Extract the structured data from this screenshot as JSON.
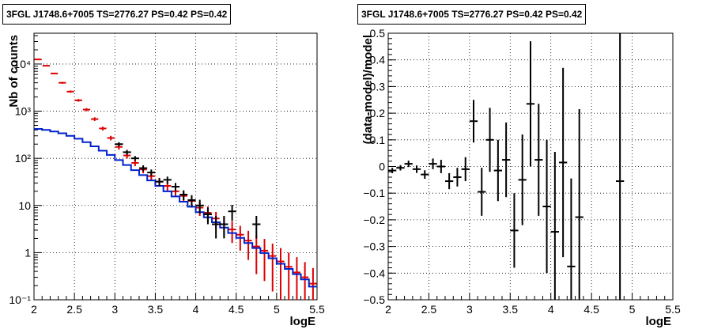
{
  "colors": {
    "data": "#000000",
    "model": "#0022cc",
    "mc": "#dd0000",
    "frame": "#000000"
  },
  "chart_data": [
    {
      "type": "line",
      "title": "3FGL J1748.6+7005 TS=2776.27 PS=0.42 PS=0.42",
      "xlabel": "logE",
      "ylabel": "Nb of counts",
      "xlim": [
        2,
        5.5
      ],
      "ylim": [
        0.1,
        45000
      ],
      "yscale": "log",
      "grid": true,
      "xticks": [
        "2",
        "2.5",
        "3",
        "3.5",
        "4",
        "4.5",
        "5",
        "5.5"
      ],
      "yticks": [
        "10⁻¹",
        "1",
        "10",
        "10²",
        "10³",
        "10⁴"
      ],
      "bin_width": 0.1,
      "series": [
        {
          "role": "model",
          "x": [
            2.05,
            2.15,
            2.25,
            2.35,
            2.45,
            2.55,
            2.65,
            2.75,
            2.85,
            2.95,
            3.05,
            3.15,
            3.25,
            3.35,
            3.45,
            3.55,
            3.65,
            3.75,
            3.85,
            3.95,
            4.05,
            4.15,
            4.25,
            4.35,
            4.45,
            4.55,
            4.65,
            4.75,
            4.85,
            4.95,
            5.05,
            5.15,
            5.25,
            5.35,
            5.45
          ],
          "y": [
            420,
            400,
            370,
            340,
            300,
            260,
            220,
            180,
            145,
            118,
            92,
            72,
            56,
            44,
            34,
            26,
            20,
            15.5,
            12,
            9.4,
            7.2,
            5.6,
            4.4,
            3.4,
            2.6,
            2.05,
            1.6,
            1.25,
            0.98,
            0.76,
            0.58,
            0.45,
            0.35,
            0.27,
            0.19
          ]
        },
        {
          "role": "mc",
          "x": [
            2.05,
            2.15,
            2.25,
            2.35,
            2.45,
            2.55,
            2.65,
            2.75,
            2.85,
            2.95,
            3.05,
            3.15,
            3.25,
            3.35,
            3.45,
            3.55,
            3.65,
            3.75,
            3.85,
            3.95,
            4.05,
            4.15,
            4.25,
            4.35,
            4.45,
            4.55,
            4.65,
            4.75,
            4.85,
            4.95,
            5.05,
            5.15,
            5.25,
            5.35,
            5.45
          ],
          "y": [
            12500,
            9200,
            6300,
            4000,
            2600,
            1700,
            1080,
            680,
            430,
            270,
            175,
            115,
            80,
            58,
            42,
            32,
            26,
            20,
            16,
            12.5,
            9,
            7,
            5.3,
            4,
            3.1,
            2.4,
            1.8,
            1.35,
            1.1,
            0.85,
            0.65,
            0.5,
            0.38,
            0.3,
            0.22
          ],
          "err": [
            400,
            300,
            230,
            180,
            140,
            110,
            80,
            60,
            40,
            30,
            22,
            16,
            12,
            10,
            8,
            6.5,
            5.5,
            5,
            4,
            3.5,
            3,
            2.5,
            2,
            1.8,
            1.5,
            1.3,
            1.1,
            1,
            0.85,
            0.7,
            0.6,
            0.5,
            0.42,
            0.33,
            0.25
          ]
        },
        {
          "role": "data",
          "x": [
            3.05,
            3.15,
            3.25,
            3.35,
            3.45,
            3.55,
            3.65,
            3.75,
            3.85,
            3.95,
            4.05,
            4.15,
            4.25,
            4.35,
            4.45,
            4.55,
            4.75
          ],
          "y": [
            200,
            135,
            100,
            62,
            50,
            32,
            35,
            25,
            17,
            13,
            10,
            6.5,
            4,
            4,
            7.5,
            0,
            4
          ],
          "err": [
            20,
            16,
            12,
            9,
            8,
            6,
            6,
            5,
            4,
            3.5,
            3.2,
            2.5,
            2,
            2,
            2.8,
            0,
            2
          ]
        }
      ]
    },
    {
      "type": "scatter",
      "title": "3FGL J1748.6+7005 TS=2776.27 PS=0.42 PS=0.42",
      "xlabel": "logE",
      "ylabel": "(data-model)/model",
      "xlim": [
        2,
        5.5
      ],
      "ylim": [
        -0.5,
        0.5
      ],
      "grid": true,
      "xticks": [
        "2",
        "2.5",
        "3",
        "3.5",
        "4",
        "4.5",
        "5",
        "5.5"
      ],
      "yticks": [
        "−0.5",
        "−0.4",
        "−0.3",
        "−0.2",
        "−0.1",
        "0",
        "0.1",
        "0.2",
        "0.3",
        "0.4",
        "0.5"
      ],
      "bin_width": 0.1,
      "points": {
        "x": [
          2.05,
          2.15,
          2.25,
          2.35,
          2.45,
          2.55,
          2.65,
          2.75,
          2.85,
          2.95,
          3.05,
          3.15,
          3.25,
          3.35,
          3.45,
          3.55,
          3.65,
          3.75,
          3.85,
          3.95,
          4.05,
          4.15,
          4.25,
          4.35,
          4.85
        ],
        "y": [
          -0.015,
          -0.005,
          0.01,
          -0.01,
          -0.03,
          0.01,
          0.0,
          -0.055,
          -0.04,
          -0.01,
          0.17,
          -0.095,
          0.1,
          -0.015,
          0.025,
          -0.24,
          -0.05,
          0.235,
          0.025,
          -0.15,
          -0.245,
          0.015,
          -0.375,
          -0.19,
          -0.055
        ],
        "err": [
          0.01,
          0.01,
          0.012,
          0.014,
          0.016,
          0.02,
          0.025,
          0.03,
          0.035,
          0.045,
          0.08,
          0.09,
          0.12,
          0.115,
          0.14,
          0.14,
          0.17,
          0.235,
          0.21,
          0.25,
          0.3,
          0.355,
          0.33,
          0.405,
          0.6
        ]
      }
    }
  ]
}
